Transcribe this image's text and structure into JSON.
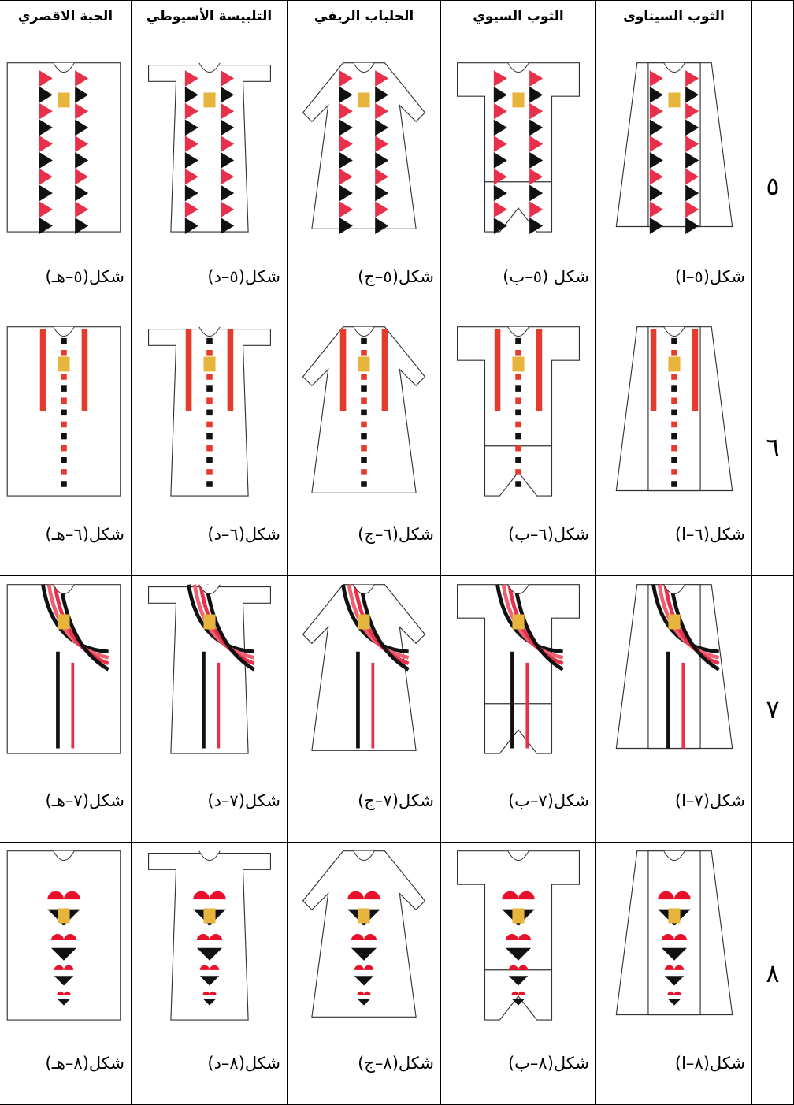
{
  "table": {
    "header": [
      "الثوب السيناوى",
      "الثوب السيوي",
      "الجلباب الريفي",
      "التلبيسة الأسيوطي",
      "الجبة الاقصري"
    ],
    "rows": [
      {
        "label": "٥",
        "captions": [
          "شكل(٥–ا)",
          "شكل (٥–ب)",
          "شكل(٥–ج)",
          "شكل(٥–د)",
          "شكل(٥–هـ)"
        ]
      },
      {
        "label": "٦",
        "captions": [
          "شكل(٦–ا)",
          "شكل(٦–ب)",
          "شكل(٦–ج)",
          "شكل(٦–د)",
          "شكل(٦–هـ)"
        ]
      },
      {
        "label": "٧",
        "captions": [
          "شكل(٧–ا)",
          "شكل(٧–ب)",
          "شكل(٧–ج)",
          "شكل(٧–د)",
          "شكل(٧–هـ)"
        ]
      },
      {
        "label": "٨",
        "captions": [
          "شكل(٨–ا)",
          "شكل(٨–ب)",
          "شكل(٨–ج)",
          "شكل(٨–د)",
          "شكل(٨–هـ)"
        ]
      }
    ]
  }
}
